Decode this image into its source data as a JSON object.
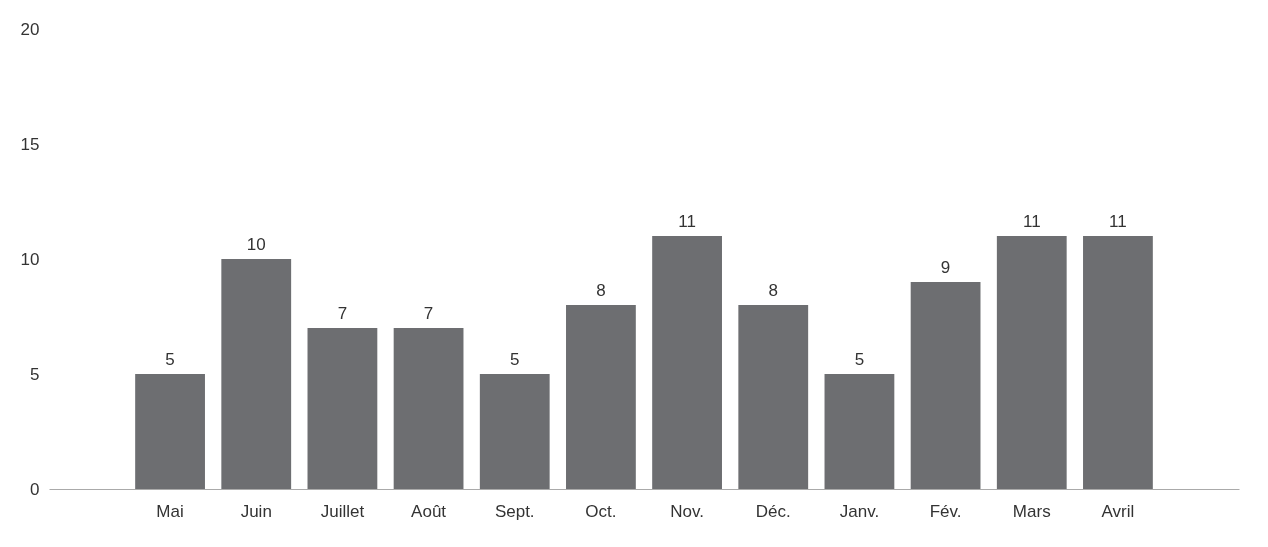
{
  "chart_data": {
    "type": "bar",
    "categories": [
      "Mai",
      "Juin",
      "Juillet",
      "Août",
      "Sept.",
      "Oct.",
      "Nov.",
      "Déc.",
      "Janv.",
      "Fév.",
      "Mars",
      "Avril"
    ],
    "values": [
      5,
      10,
      7,
      7,
      5,
      8,
      11,
      8,
      5,
      9,
      11,
      11
    ],
    "color": "#6d6e71",
    "ylim": [
      0,
      20
    ],
    "yticks": [
      0,
      5,
      10,
      15,
      20
    ],
    "grid": false,
    "data_labels": true
  }
}
